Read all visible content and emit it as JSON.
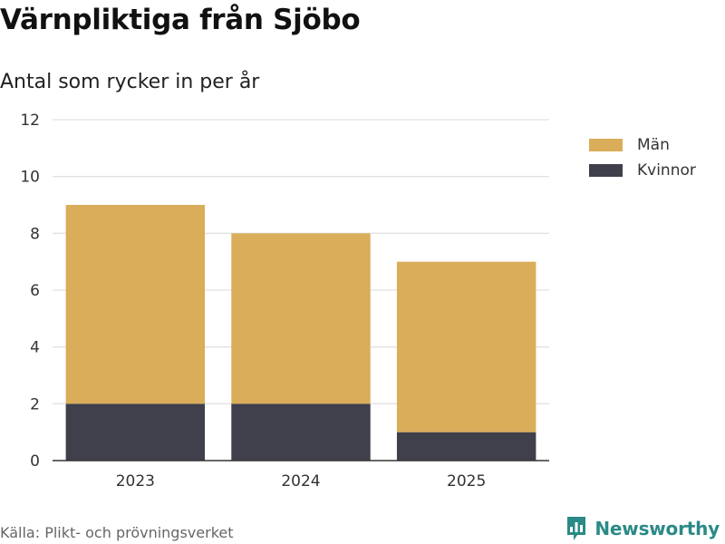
{
  "header": {
    "title": "Värnpliktiga från Sjöbo",
    "subtitle": "Antal som rycker in per år"
  },
  "footer": {
    "source": "Källa: Plikt- och prövningsverket",
    "brand": "Newsworthy",
    "brand_icon": "bar-chart-speech-bubble-icon",
    "brand_color": "#2a8a86"
  },
  "chart_data": {
    "type": "bar",
    "stacked": true,
    "title": "Värnpliktiga från Sjöbo",
    "subtitle": "Antal som rycker in per år",
    "xlabel": "",
    "ylabel": "",
    "categories": [
      "2023",
      "2024",
      "2025"
    ],
    "series": [
      {
        "name": "Kvinnor",
        "values": [
          2,
          2,
          1
        ],
        "color": "#403f4c"
      },
      {
        "name": "Män",
        "values": [
          7,
          6,
          6
        ],
        "color": "#d9ad5a"
      }
    ],
    "legend_order": [
      "Män",
      "Kvinnor"
    ],
    "ylim": [
      0,
      12
    ],
    "yticks": [
      0,
      2,
      4,
      6,
      8,
      10,
      12
    ],
    "grid": true,
    "legend_position": "right"
  }
}
